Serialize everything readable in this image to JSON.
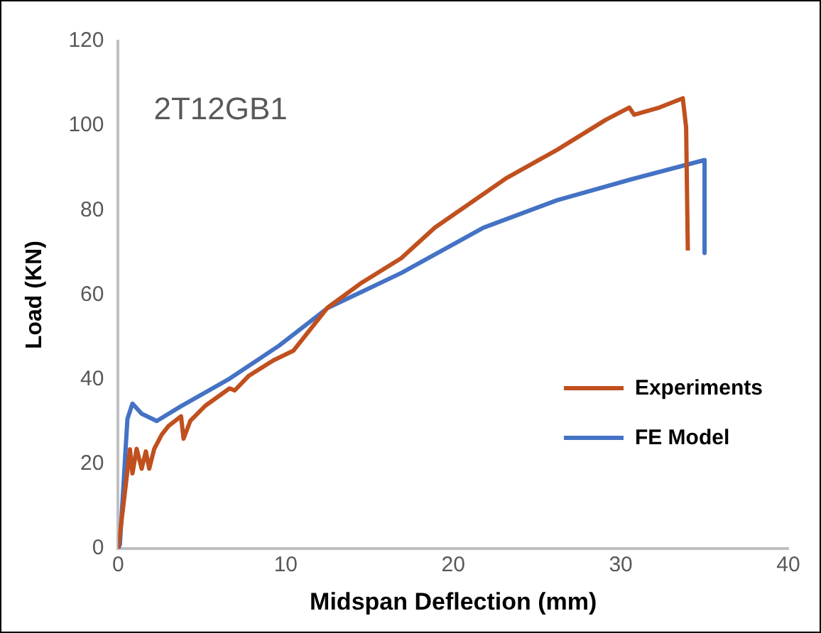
{
  "chart_data": {
    "type": "line",
    "xlabel": "Midspan Deflection (mm)",
    "ylabel": "Load (KN)",
    "annotations": [
      "2T12GB1"
    ],
    "xlim": [
      0,
      40
    ],
    "xticks": [
      0,
      10,
      20,
      30,
      40
    ],
    "ylim": [
      0,
      120
    ],
    "yticks": [
      0,
      20,
      40,
      60,
      80,
      100,
      120
    ],
    "grid": false,
    "legend": "right",
    "marker": "none",
    "line_style": "solid",
    "series": [
      {
        "name": "Experiments",
        "color": "#c0501e",
        "x": [
          0,
          0.3,
          0.7,
          0.85,
          1.1,
          1.4,
          1.65,
          1.85,
          2.15,
          2.6,
          3.0,
          3.75,
          3.9,
          4.3,
          5.2,
          6.65,
          6.95,
          7.8,
          9.25,
          10.45,
          12.5,
          14.5,
          16.9,
          18.9,
          23.2,
          26.2,
          29.1,
          30.5,
          30.8,
          32.3,
          33.7,
          33.9,
          34.0
        ],
        "values": [
          0,
          10,
          23.5,
          17.8,
          23.6,
          18.9,
          23,
          18.9,
          23.6,
          27,
          29,
          31.3,
          26,
          30.2,
          33.8,
          37.9,
          37.4,
          40.9,
          44.5,
          46.8,
          57,
          62.8,
          68.7,
          75.9,
          87.7,
          94.3,
          101.4,
          104.3,
          102.6,
          104.3,
          106.5,
          99.6,
          70.5
        ]
      },
      {
        "name": "FE Model",
        "color": "#4472c4",
        "x": [
          0,
          0.1,
          0.55,
          0.85,
          1.4,
          2.3,
          3.75,
          6.65,
          9.6,
          12.5,
          16.9,
          21.8,
          26.2,
          30.5,
          35.0,
          35.0
        ],
        "values": [
          0,
          1,
          30.7,
          34.3,
          31.9,
          30.2,
          33.7,
          40.2,
          48,
          56.9,
          65.2,
          75.9,
          82.4,
          87.2,
          91.9,
          69.9
        ]
      }
    ]
  }
}
